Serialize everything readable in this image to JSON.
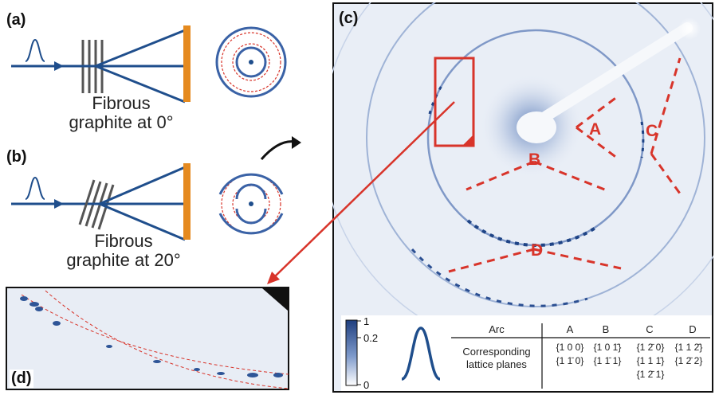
{
  "panels": {
    "a": {
      "label": "(a)",
      "caption_line1": "Fibrous",
      "caption_line2": "graphite at 0°"
    },
    "b": {
      "label": "(b)",
      "caption_line1": "Fibrous",
      "caption_line2": "graphite at 20°"
    },
    "c": {
      "label": "(c)"
    },
    "d": {
      "label": "(d)"
    }
  },
  "arc_labels": [
    "A",
    "B",
    "C",
    "D"
  ],
  "colorbar": {
    "ticks": [
      "1",
      "0.2",
      "0"
    ]
  },
  "table": {
    "header": {
      "row_label": "Arc",
      "cols": [
        "A",
        "B",
        "C",
        "D"
      ]
    },
    "row_label_line1": "Corresponding",
    "row_label_line2": "lattice planes",
    "cells": {
      "A": [
        "{1 0 0}",
        "{1 1̄ 0}"
      ],
      "B": [
        "{1 0 1̄}",
        "{1 1̄ 1}"
      ],
      "C": [
        "{1 2̄ 0}",
        "{1 1 1̄}",
        "{1 2̄ 1}"
      ],
      "D": [
        "{1 1 2̄}",
        "{1 2̄ 2}"
      ]
    }
  },
  "colors": {
    "beam": "#1f4e8c",
    "detector": "#e58a1f",
    "red": "#d8342a",
    "grating": "#555555",
    "pattern_bg": "#e9eef6",
    "ring": "#3a62a6"
  }
}
